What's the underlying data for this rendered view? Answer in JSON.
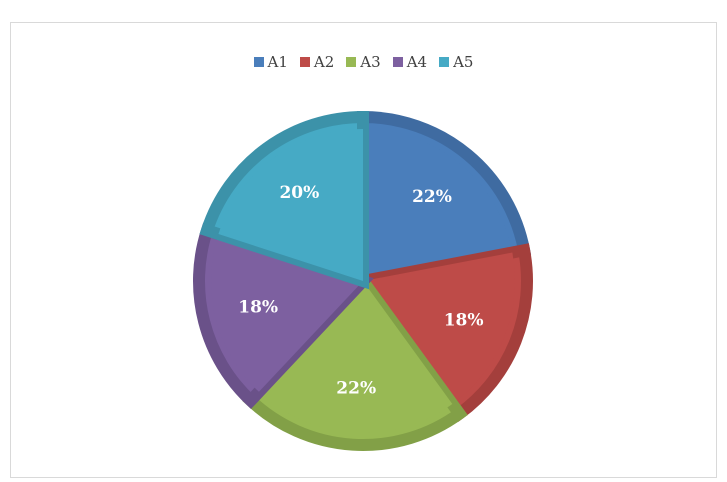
{
  "chart_data": {
    "type": "pie",
    "title": "",
    "categories": [
      "A1",
      "A2",
      "A3",
      "A4",
      "A5"
    ],
    "values": [
      22,
      18,
      22,
      18,
      20
    ],
    "labels": [
      "22%",
      "18%",
      "22%",
      "18%",
      "20%"
    ],
    "colors": [
      "#4a7ebb",
      "#be4b48",
      "#98b954",
      "#7d60a0",
      "#46aac5"
    ],
    "edge_colors": [
      "#3f6ba1",
      "#a43f3c",
      "#82a047",
      "#6a5189",
      "#3c92a9"
    ],
    "legend_position": "top"
  }
}
